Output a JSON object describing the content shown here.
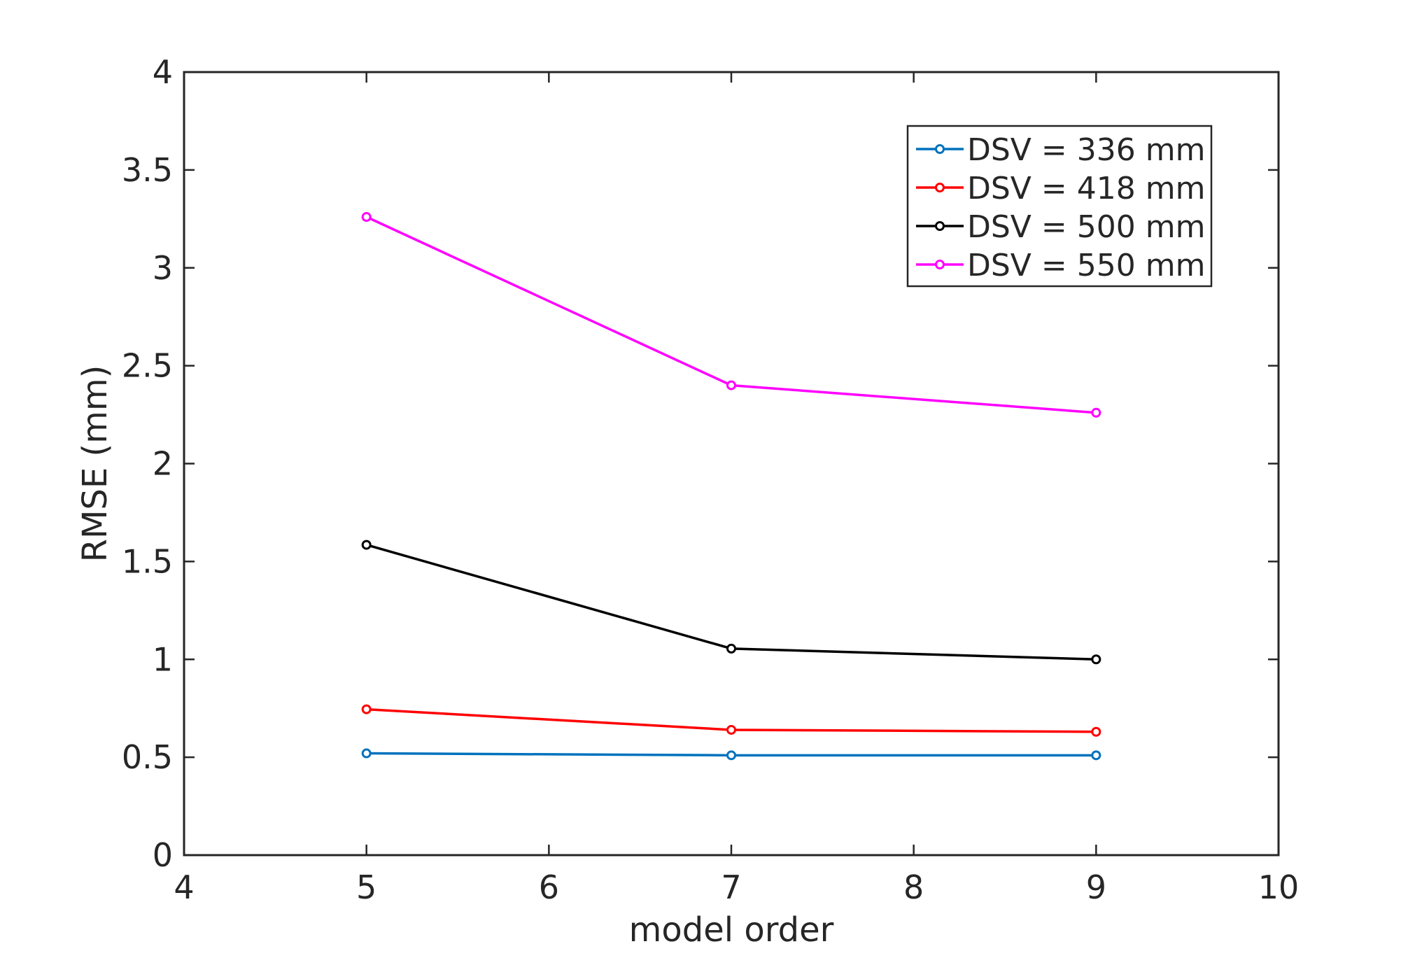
{
  "chart_data": {
    "type": "line",
    "title": "",
    "xlabel": "model order",
    "ylabel": "RMSE (mm)",
    "xlim": [
      4,
      10
    ],
    "ylim": [
      0,
      4
    ],
    "xticks": [
      4,
      5,
      6,
      7,
      8,
      9,
      10
    ],
    "yticks": [
      0,
      0.5,
      1,
      1.5,
      2,
      2.5,
      3,
      3.5,
      4
    ],
    "xtick_labels": [
      "4",
      "5",
      "6",
      "7",
      "8",
      "9",
      "10"
    ],
    "ytick_labels": [
      "0",
      "0.5",
      "1",
      "1.5",
      "2",
      "2.5",
      "3",
      "3.5",
      "4"
    ],
    "grid": false,
    "legend_position": "top-right",
    "x": [
      5,
      7,
      9
    ],
    "series": [
      {
        "name": "DSV = 336 mm",
        "color": "#0072BD",
        "values": [
          0.52,
          0.51,
          0.51
        ]
      },
      {
        "name": "DSV = 418 mm",
        "color": "#FF0000",
        "values": [
          0.745,
          0.64,
          0.63
        ]
      },
      {
        "name": "DSV = 500 mm",
        "color": "#000000",
        "values": [
          1.585,
          1.055,
          1.0
        ]
      },
      {
        "name": "DSV = 550 mm",
        "color": "#FF00FF",
        "values": [
          3.26,
          2.4,
          2.26
        ]
      }
    ]
  }
}
